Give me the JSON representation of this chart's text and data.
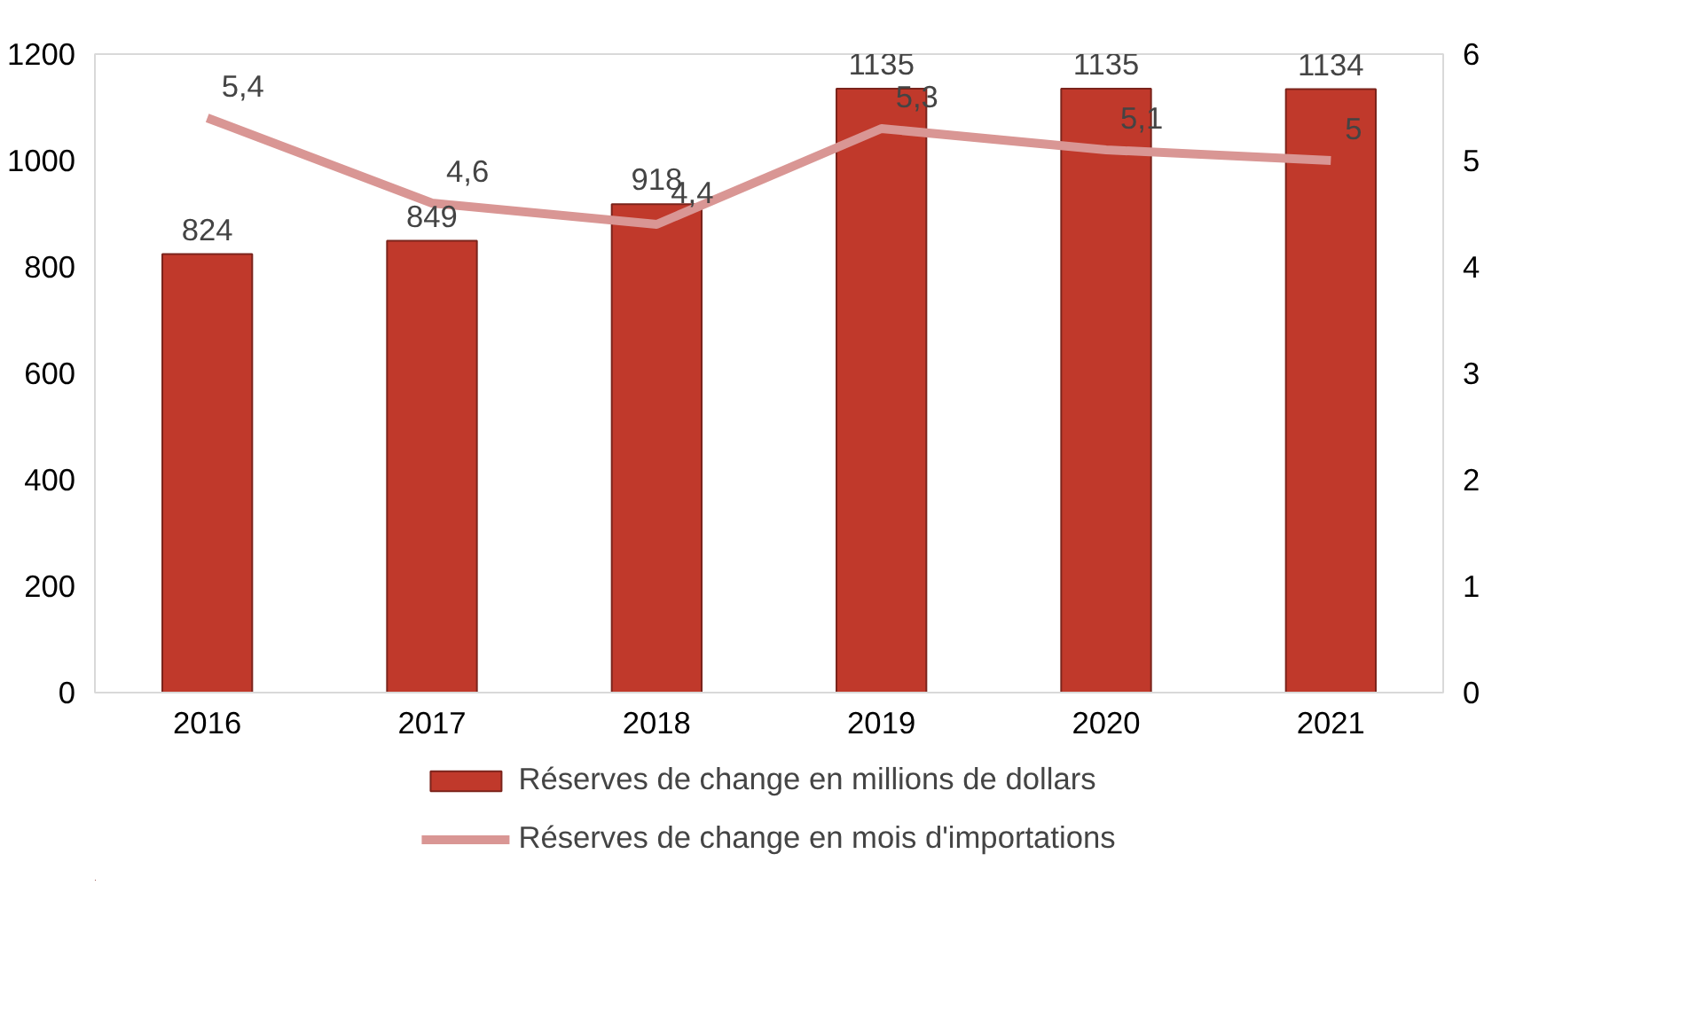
{
  "chart_data": {
    "type": "bar",
    "categories": [
      "2016",
      "2017",
      "2018",
      "2019",
      "2020",
      "2021"
    ],
    "series": [
      {
        "name": "Réserves de change en millions de dollars",
        "type": "bar",
        "color": "#c0392b",
        "values": [
          824,
          849,
          918,
          1135,
          1135,
          1134
        ],
        "value_labels": [
          "824",
          "849",
          "918",
          "1135",
          "1135",
          "1134"
        ]
      },
      {
        "name": "Réserves de change en mois d'importations",
        "type": "line",
        "axis": "y2",
        "color": "#d99694",
        "values": [
          5.4,
          4.6,
          4.4,
          5.3,
          5.1,
          5
        ],
        "value_labels": [
          "5,4",
          "4,6",
          "4,4",
          "5,3",
          "5,1",
          "5"
        ]
      }
    ],
    "ylim": [
      0,
      1200
    ],
    "yticks": [
      0,
      200,
      400,
      600,
      800,
      1000,
      1200
    ],
    "y2lim": [
      0,
      6
    ],
    "y2ticks": [
      0,
      1,
      2,
      3,
      4,
      5,
      6
    ],
    "grid": false,
    "legend": "bottom",
    "marker": "none",
    "line_style": "solid"
  }
}
